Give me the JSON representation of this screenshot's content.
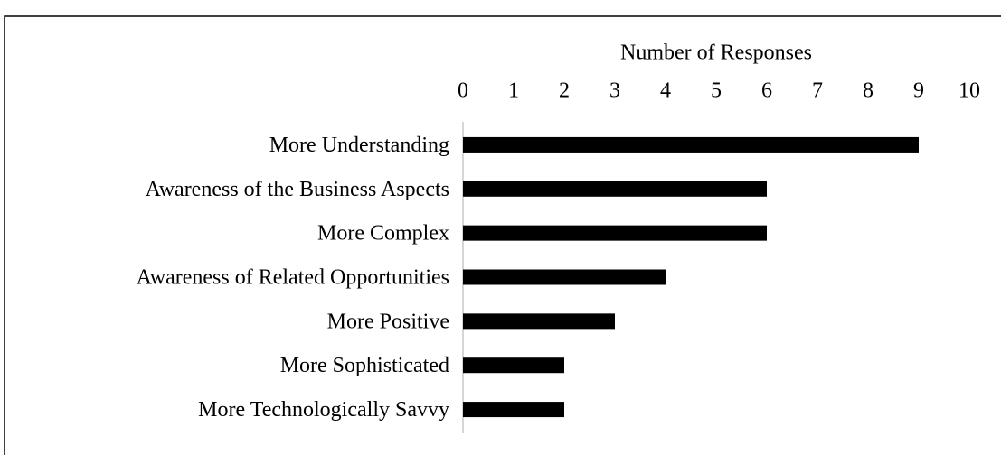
{
  "chart_data": {
    "type": "barh",
    "xlabel": "Number of Responses",
    "categories": [
      "More Understanding",
      "Awareness of the Business Aspects",
      "More Complex",
      "Awareness of Related Opportunities",
      "More Positive",
      "More Sophisticated",
      "More Technologically Savvy"
    ],
    "values": [
      9,
      6,
      6,
      4,
      3,
      2,
      2
    ],
    "color": "#000000",
    "xlim": [
      0,
      10
    ],
    "xticks": [
      0,
      1,
      2,
      3,
      4,
      5,
      6,
      7,
      8,
      9,
      10
    ],
    "grid": false
  }
}
